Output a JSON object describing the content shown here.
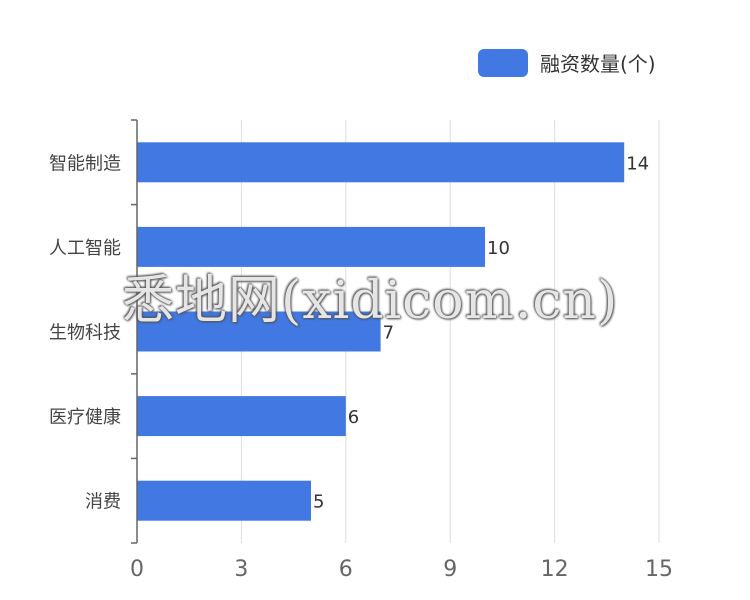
{
  "chart_data": {
    "type": "bar",
    "orientation": "horizontal",
    "categories": [
      "智能制造",
      "人工智能",
      "生物科技",
      "医疗健康",
      "消费"
    ],
    "series": [
      {
        "name": "融资数量(个)",
        "values": [
          14,
          10,
          7,
          6,
          5
        ]
      }
    ],
    "xlim": [
      0,
      15
    ],
    "x_ticks": [
      0,
      3,
      6,
      9,
      12,
      15
    ],
    "grid": "vertical",
    "legend": "top-right",
    "data_labels": true
  },
  "colors": {
    "bar": "#4178E1",
    "grid": "#dddddd",
    "axis": "#666666",
    "label": "#333333"
  },
  "watermark": "悉地网(xidicom.cn)"
}
